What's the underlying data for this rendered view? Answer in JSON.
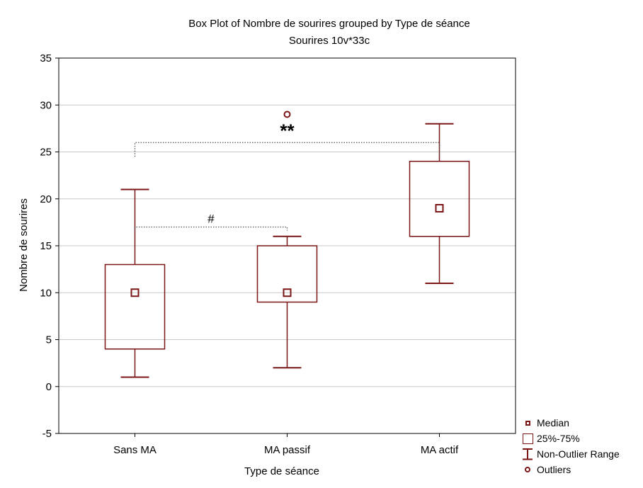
{
  "chart_data": {
    "type": "box",
    "title": "Box Plot of Nombre de sourires grouped by  Type de séance",
    "subtitle": "Sourires 10v*33c",
    "xlabel": "Type de séance",
    "ylabel": "Nombre de sourires",
    "ylim": [
      -5,
      35
    ],
    "yticks": [
      -5,
      0,
      5,
      10,
      15,
      20,
      25,
      30,
      35
    ],
    "grid": true,
    "categories": [
      "Sans MA",
      "MA passif",
      "MA actif"
    ],
    "boxes": [
      {
        "category": "Sans MA",
        "min": 1,
        "q1": 4,
        "median": 10,
        "q3": 13,
        "max": 21,
        "outliers": []
      },
      {
        "category": "MA passif",
        "min": 2,
        "q1": 9,
        "median": 10,
        "q3": 15,
        "max": 16,
        "outliers": [
          29
        ]
      },
      {
        "category": "MA actif",
        "min": 11,
        "q1": 16,
        "median": 19,
        "q3": 24,
        "max": 28,
        "outliers": []
      }
    ],
    "annotations": [
      {
        "text": "**",
        "from": "Sans MA",
        "to": "MA actif",
        "y": 26
      },
      {
        "text": "#",
        "from": "Sans MA",
        "to": "MA passif",
        "y": 17
      }
    ],
    "legend": {
      "position": "bottom-right",
      "entries": [
        "Median",
        "25%-75%",
        "Non-Outlier Range",
        "Outliers"
      ]
    },
    "colors": {
      "box": "#7a1616",
      "grid": "#c8c8c8",
      "bracket": "#555555"
    }
  }
}
